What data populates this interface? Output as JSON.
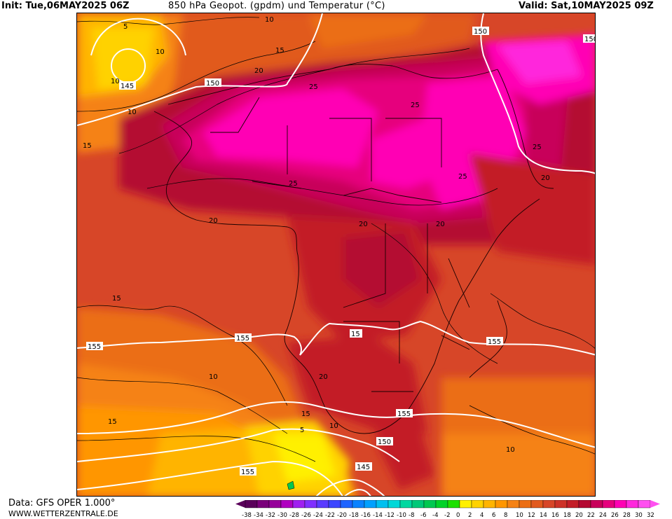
{
  "header": {
    "init": "Init: Tue,06MAY2025 06Z",
    "title": "850 hPa Geopot. (gpdm) und Temperatur (°C)",
    "valid": "Valid: Sat,10MAY2025 09Z"
  },
  "footer": {
    "data_source": "Data: GFS OPER 1.000°",
    "website": "WWW.WETTERZENTRALE.DE"
  },
  "geopotential_labels": [
    "150",
    "145",
    "150",
    "150",
    "155",
    "155",
    "155",
    "155",
    "150",
    "145",
    "155",
    "15"
  ],
  "temperature_labels": [
    "5",
    "10",
    "15",
    "10",
    "15",
    "20",
    "25",
    "25",
    "25",
    "25",
    "20",
    "20",
    "20",
    "25",
    "20",
    "15",
    "15",
    "10",
    "10",
    "5",
    "20",
    "15",
    "10",
    "10",
    "10"
  ],
  "colorbar": {
    "ticks": [
      "-38",
      "-34",
      "-32",
      "-30",
      "-28",
      "-26",
      "-24",
      "-22",
      "-20",
      "-18",
      "-16",
      "-14",
      "-12",
      "-10",
      "-8",
      "-6",
      "-4",
      "-2",
      "0",
      "2",
      "4",
      "6",
      "8",
      "10",
      "12",
      "14",
      "16",
      "18",
      "20",
      "22",
      "24",
      "26",
      "28",
      "30",
      "32"
    ],
    "colors": [
      "#5a005a",
      "#7a007a",
      "#96009a",
      "#b000c0",
      "#a020f0",
      "#8030ff",
      "#5a3cff",
      "#3c46ff",
      "#1e64ff",
      "#0a82ff",
      "#00a0ff",
      "#00c0f0",
      "#00d8d8",
      "#00d8a0",
      "#00c878",
      "#00c850",
      "#00d228",
      "#1ee000",
      "#fff000",
      "#ffd200",
      "#ffb400",
      "#ff9600",
      "#f58214",
      "#eb6e14",
      "#e15a1e",
      "#d74628",
      "#cd3228",
      "#c31e28",
      "#b40a32",
      "#c8005a",
      "#e6007d",
      "#ff00b4",
      "#ff28dc",
      "#ff50f0"
    ]
  }
}
